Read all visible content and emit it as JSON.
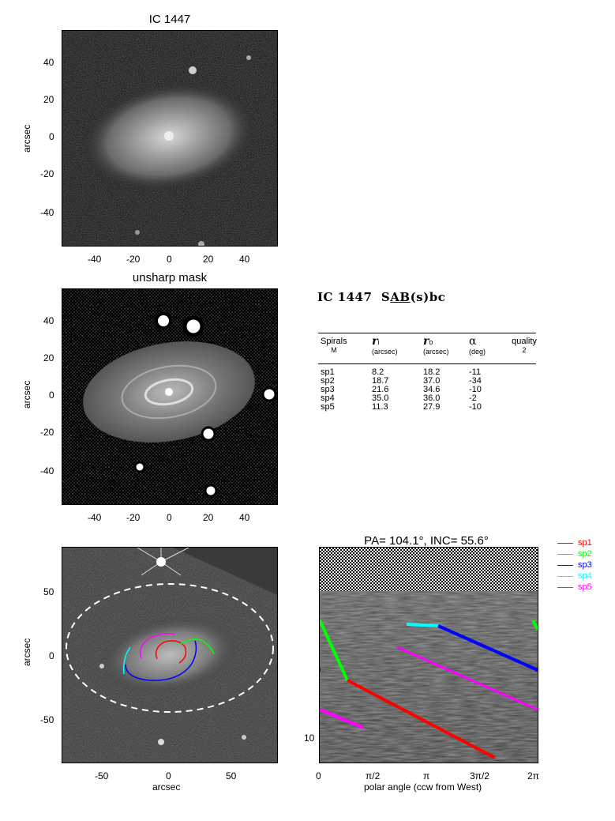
{
  "panels": {
    "top": {
      "title": "IC 1447",
      "ylabel": "arcsec",
      "xticks": [
        "-40",
        "-20",
        "0",
        "20",
        "40"
      ],
      "yticks": [
        "40",
        "20",
        "0",
        "-20",
        "-40"
      ]
    },
    "mid": {
      "title": "unsharp mask",
      "ylabel": "arcsec",
      "xticks": [
        "-40",
        "-20",
        "0",
        "20",
        "40"
      ],
      "yticks": [
        "40",
        "20",
        "0",
        "-20",
        "-40"
      ]
    },
    "bottom": {
      "ylabel": "arcsec",
      "xlabel": "arcsec",
      "xticks": [
        "-50",
        "0",
        "50"
      ],
      "yticks": [
        "50",
        "0",
        "-50"
      ]
    },
    "polar": {
      "title": "PA= 104.1°, INC=  55.6°",
      "xlabel": "polar angle (ccw from West)",
      "xticks": [
        "0",
        "π/2",
        "π",
        "3π/2",
        "2π"
      ],
      "ytick": "10"
    }
  },
  "galaxy": {
    "name": "IC 1447",
    "class_prefix": "S",
    "class_ab": "AB",
    "class_suffix": "(s)bc"
  },
  "table": {
    "headers": {
      "spirals": "Spirals",
      "spirals_sub": "M",
      "ri": "r",
      "ri_sub": "i",
      "ri_unit": "(arcsec)",
      "ro": "r",
      "ro_sub": "o",
      "ro_unit": "(arcsec)",
      "alpha": "α",
      "alpha_unit": "(deg)",
      "quality": "quality",
      "quality_val": "2"
    },
    "rows": [
      {
        "name": "sp1",
        "ri": "8.2",
        "ro": "18.2",
        "alpha": "-11"
      },
      {
        "name": "sp2",
        "ri": "18.7",
        "ro": "37.0",
        "alpha": "-34"
      },
      {
        "name": "sp3",
        "ri": "21.6",
        "ro": "34.6",
        "alpha": "-10"
      },
      {
        "name": "sp4",
        "ri": "35.0",
        "ro": "36.0",
        "alpha": "-2"
      },
      {
        "name": "sp5",
        "ri": "11.3",
        "ro": "27.9",
        "alpha": "-10"
      }
    ]
  },
  "legend": [
    {
      "name": "sp1",
      "color": "#ff0000"
    },
    {
      "name": "sp2",
      "color": "#00ff00"
    },
    {
      "name": "sp3",
      "color": "#0000ff"
    },
    {
      "name": "sp4",
      "color": "#00ffff"
    },
    {
      "name": "sp5",
      "color": "#ff00ff"
    }
  ]
}
